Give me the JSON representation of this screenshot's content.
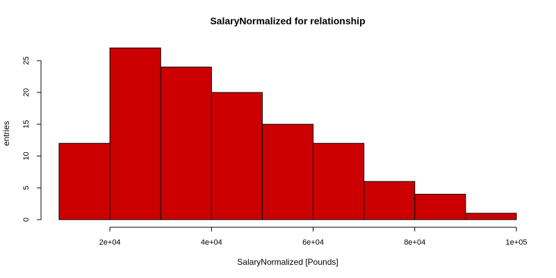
{
  "chart_data": {
    "type": "bar",
    "title": "SalaryNormalized for relationship",
    "xlabel": "SalaryNormalized [Pounds]",
    "ylabel": "entries",
    "bin_edges": [
      10000,
      20000,
      30000,
      40000,
      50000,
      60000,
      70000,
      80000,
      90000,
      100000
    ],
    "values": [
      12,
      27,
      24,
      20,
      15,
      12,
      6,
      4,
      1
    ],
    "xlim": [
      10000,
      100000
    ],
    "ylim": [
      0,
      28
    ],
    "x_ticks": [
      20000,
      40000,
      60000,
      80000,
      100000
    ],
    "x_tick_labels": [
      "2e+04",
      "4e+04",
      "6e+04",
      "8e+04",
      "1e+05"
    ],
    "y_ticks": [
      0,
      5,
      10,
      15,
      20,
      25
    ],
    "y_tick_labels": [
      "0",
      "5",
      "10",
      "15",
      "20",
      "25"
    ],
    "bar_color": "#cc0000",
    "edge_color": "#000000",
    "grid": false,
    "legend": "none"
  }
}
